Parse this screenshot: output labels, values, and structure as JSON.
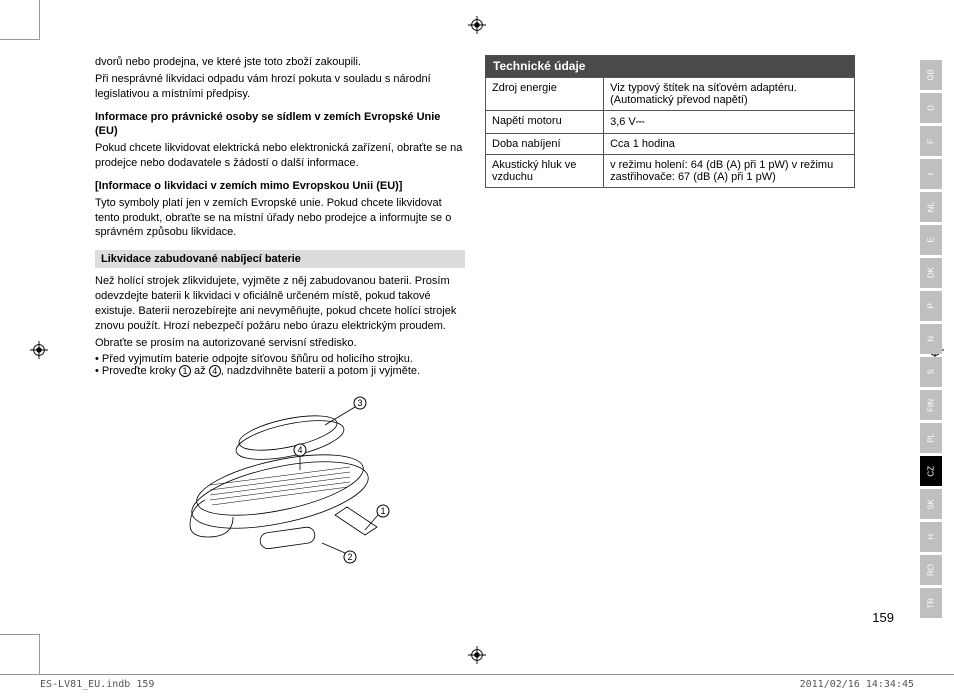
{
  "left": {
    "p1": "dvorů nebo prodejna, ve které jste toto zboží zakoupili.",
    "p2": "Při nesprávné likvidaci odpadu vám hrozí pokuta v souladu s národní legislativou a místními předpisy.",
    "h1": "Informace pro právnické osoby se sídlem v zemích Evropské Unie (EU)",
    "p3": "Pokud chcete likvidovat elektrická nebo elektronická zařízení, obraťte se na prodejce nebo dodavatele s žádostí o další informace.",
    "h2": "[Informace o likvidaci v zemích mimo Evropskou Unii (EU)]",
    "p4": "Tyto symboly platí jen v zemích Evropské unie. Pokud chcete likvidovat tento produkt, obraťte se na místní úřady nebo prodejce a informujte se o správném způsobu likvidace.",
    "sec": "Likvidace zabudované nabíjecí baterie",
    "p5": "Než holící strojek zlikvidujete, vyjměte z něj zabudovanou baterii. Prosím odevzdejte baterii k likvidaci v oficiálně určeném místě, pokud takové existuje. Baterii nerozebírejte ani nevyměňujte, pokud chcete holící strojek znovu použít. Hrozí nebezpečí požáru nebo úrazu elektrickým proudem.",
    "p6": "Obraťte se prosím na autorizované servisní středisko.",
    "b1": "Před vyjmutím baterie odpojte síťovou šňůru od holicího strojku.",
    "b2a": "Proveďte kroky ",
    "b2b": " až ",
    "b2c": ", nadzdvihněte baterii a potom ji vyjměte."
  },
  "right": {
    "sec": "Technické údaje",
    "r1k": "Zdroj energie",
    "r1v": "Viz typový štítek na síťovém adaptéru. (Automatický převod napětí)",
    "r2k": "Napětí motoru",
    "r2v": "3,6 V",
    "r3k": "Doba nabíjení",
    "r3v": "Cca 1 hodina",
    "r4k": "Akustický hluk ve vzduchu",
    "r4v": "v režimu holení: 64 (dB (A) při 1 pW) v režimu zastřihovače: 67 (dB (A) při 1 pW)"
  },
  "langs": [
    "GB",
    "D",
    "F",
    "I",
    "NL",
    "E",
    "DK",
    "P",
    "N",
    "S",
    "FIN",
    "PL",
    "CZ",
    "SK",
    "H",
    "RO",
    "TR"
  ],
  "active_lang": "CZ",
  "page_num": "159",
  "footer_left": "ES-LV81_EU.indb   159",
  "footer_right": "2011/02/16   14:34:45",
  "nums": {
    "n1": "1",
    "n2": "2",
    "n3": "3",
    "n4": "4"
  }
}
